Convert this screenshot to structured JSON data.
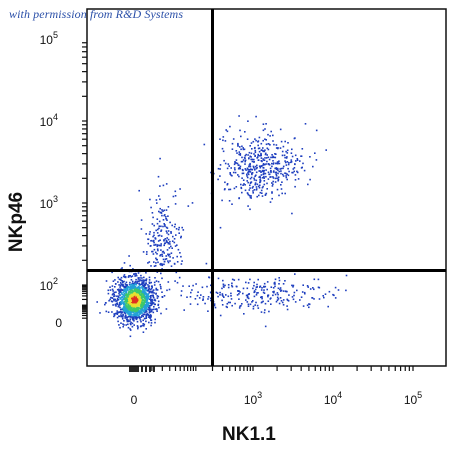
{
  "watermark": "with permission from R&D Systems",
  "chart_data": {
    "type": "scatter",
    "title": "",
    "xlabel": "NK1.1",
    "ylabel": "NKp46",
    "x_scale": "biexponential",
    "y_scale": "biexponential",
    "x_ticks": [
      {
        "value": 0,
        "base": "0",
        "exp": ""
      },
      {
        "value": 1000,
        "base": "10",
        "exp": "3"
      },
      {
        "value": 10000,
        "base": "10",
        "exp": "4"
      },
      {
        "value": 100000,
        "base": "10",
        "exp": "5"
      }
    ],
    "y_ticks": [
      {
        "value": 0,
        "base": "0",
        "exp": ""
      },
      {
        "value": 100,
        "base": "10",
        "exp": "2"
      },
      {
        "value": 1000,
        "base": "10",
        "exp": "3"
      },
      {
        "value": 10000,
        "base": "10",
        "exp": "4"
      },
      {
        "value": 100000,
        "base": "10",
        "exp": "5"
      }
    ],
    "gates": {
      "x": 200,
      "y": 150
    },
    "populations": [
      {
        "name": "",
        "center": [
          0,
          20
        ],
        "density": "high",
        "count": 1400
      },
      {
        "name": "",
        "center": [
          20,
          300
        ],
        "density": "low",
        "count": 220
      },
      {
        "name": "",
        "center": [
          1200,
          2800
        ],
        "density": "medium",
        "count": 480
      },
      {
        "name": "",
        "center": [
          900,
          40
        ],
        "density": "low",
        "count": 260
      }
    ],
    "grid": false,
    "legend": "none",
    "colors": [
      "#1f3fbf",
      "#22a0d8",
      "#3ec76a",
      "#e8e030",
      "#e03020"
    ]
  }
}
